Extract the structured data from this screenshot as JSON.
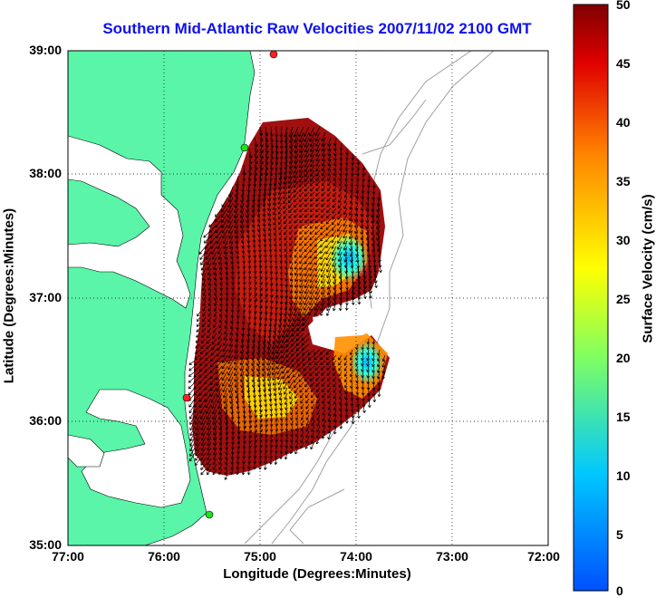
{
  "title": "Southern Mid-Atlantic Raw Velocities 2007/11/02 2100 GMT",
  "x_axis_label": "Longitude (Degrees:Minutes)",
  "y_axis_label": "Latitude (Degrees:Minutes)",
  "colorbar_label": "Surface Velocity (cm/s)",
  "x_ticks": [
    "77:00",
    "76:00",
    "75:00",
    "74:00",
    "73:00",
    "72:00"
  ],
  "y_ticks": [
    "39:00",
    "38:00",
    "37:00",
    "36:00",
    "35:00"
  ],
  "colorbar_ticks": [
    "50",
    "45",
    "40",
    "35",
    "30",
    "25",
    "20",
    "15",
    "10",
    "5",
    "0"
  ],
  "colors": {
    "land": "#5af5a8",
    "title": "#1010ee",
    "vectors": "#000000",
    "bathymetry": "#a0a0a0",
    "station": "#ff2020",
    "station_alt": "#20e020"
  },
  "chart_data": {
    "type": "heatmap",
    "xlim": [
      -77,
      -72
    ],
    "ylim": [
      35,
      39
    ],
    "colorbar_range": [
      0,
      50
    ],
    "grid": true,
    "colormap": "jet"
  }
}
